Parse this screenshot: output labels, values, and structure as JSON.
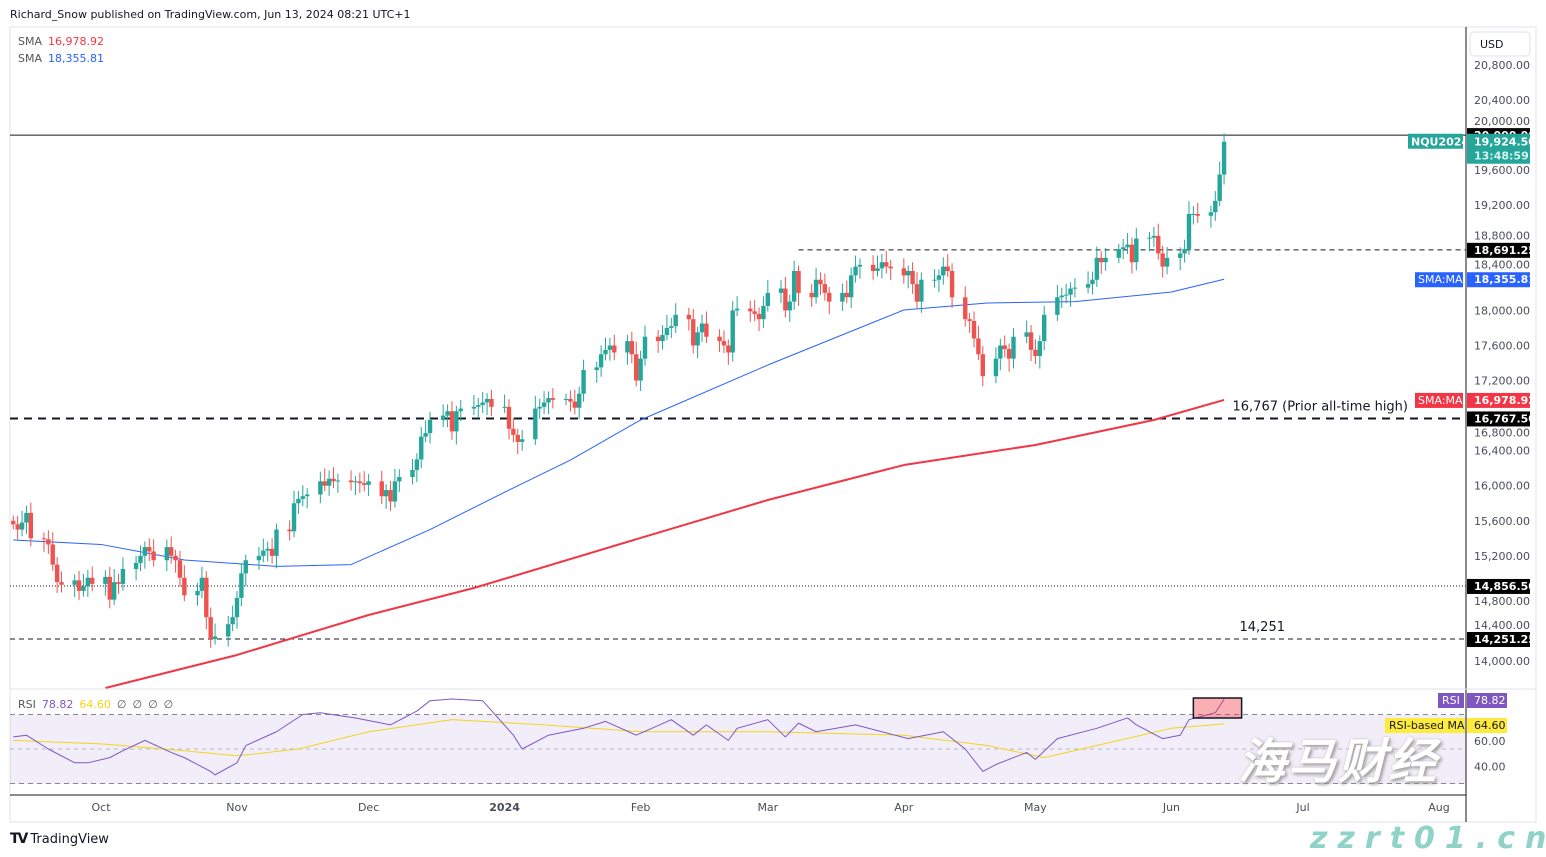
{
  "header": {
    "published": "Richard_Snow published on TradingView.com, Jun 13, 2024 08:21 UTC+1"
  },
  "legend": [
    {
      "label": "SMA",
      "value": "16,978.92",
      "color": "#f23645"
    },
    {
      "label": "SMA",
      "value": "18,355.81",
      "color": "#2962ff"
    }
  ],
  "rsi_legend": {
    "label": "RSI",
    "value": "78.82",
    "ma_value": "64.60",
    "empties": [
      "∅",
      "∅",
      "∅",
      "∅"
    ],
    "value_color": "#7e57c2",
    "ma_color": "#f5d31a"
  },
  "brand": {
    "logo": "TV",
    "name": "TradingView"
  },
  "watermark": {
    "cn": "海马财经",
    "url": "zzrt01.cn"
  },
  "chart_data": [
    {
      "type": "candlestick",
      "symbol": "NQU2024",
      "currency": "USD",
      "start_date": "2023-09-11",
      "first_open": 15600,
      "closes": [
        15560,
        15500,
        15580,
        15690,
        15400,
        15390,
        15330,
        15100,
        14900,
        14870,
        14920,
        14800,
        14850,
        14950,
        14880,
        14960,
        14700,
        14900,
        14880,
        15050,
        15120,
        15200,
        15300,
        15250,
        15150,
        15300,
        15200,
        15150,
        14950,
        14750,
        14800,
        14950,
        14500,
        14250,
        14280,
        14420,
        14500,
        14720,
        15000,
        15150,
        15200,
        15260,
        15280,
        15200,
        15500,
        15480,
        15800,
        15850,
        15880,
        15900,
        16050,
        16000,
        16080,
        16050,
        16060,
        16040,
        16050,
        16030,
        16010,
        16050,
        15880,
        15950,
        15820,
        16050,
        16100,
        16180,
        16300,
        16560,
        16600,
        16750,
        16800,
        16850,
        16620,
        16850,
        16880,
        16900,
        16920,
        16950,
        16990,
        16900,
        16900,
        16650,
        16580,
        16500,
        16530,
        16880,
        16900,
        16950,
        17000,
        16980,
        16990,
        16960,
        16890,
        17050,
        17320,
        17350,
        17500,
        17550,
        17600,
        17520,
        17650,
        17500,
        17200,
        17450,
        17700,
        17650,
        17720,
        17800,
        17820,
        17950,
        17900,
        17600,
        17750,
        17850,
        17700,
        17650,
        17600,
        17520,
        18000,
        18020,
        17990,
        17960,
        17900,
        18050,
        18200,
        18250,
        18000,
        18100,
        18450,
        18200,
        18150,
        18350,
        18300,
        18200,
        18100,
        18200,
        18150,
        18400,
        18500,
        18520,
        18450,
        18480,
        18550,
        18500,
        18480,
        18400,
        18450,
        18300,
        18100,
        18350,
        18350,
        18400,
        18500,
        18450,
        18150,
        17900,
        17880,
        17680,
        17500,
        17250,
        17450,
        17600,
        17560,
        17450,
        17700,
        17750,
        17550,
        17480,
        17650,
        17950,
        18150,
        18170,
        18180,
        18250,
        18260,
        18300,
        18350,
        18600,
        18550,
        18600,
        18700,
        18720,
        18750,
        18550,
        18820,
        18830,
        18850,
        18650,
        18500,
        18600,
        18650,
        18700,
        19100,
        19100,
        19080,
        19120,
        19250,
        19550,
        19924.5
      ],
      "up_color": "#26a69a",
      "down_color": "#ef5350",
      "last_price": "19,924.50",
      "countdown": "13:48:59",
      "ylim": [
        13700,
        21100
      ],
      "y_ticks": [
        "20,800.00",
        "20,400.00",
        "20,000.00",
        "19,600.00",
        "19,200.00",
        "18,800.00",
        "18,400.00",
        "18,000.00",
        "17,600.00",
        "17,200.00",
        "16,800.00",
        "16,400.00",
        "16,000.00",
        "15,600.00",
        "15,200.00",
        "14,800.00",
        "14,400.00",
        "14,000.00"
      ],
      "x_ticks": [
        "Oct",
        "Nov",
        "Dec",
        "2024",
        "Feb",
        "Mar",
        "Apr",
        "May",
        "Jun",
        "Jul",
        "Aug"
      ],
      "sma_200": {
        "label": "SMA:MA",
        "value": "16,978.92",
        "color": "#f23645",
        "points": [
          [
            "2023-10-02",
            13692
          ],
          [
            "2023-11-01",
            14069
          ],
          [
            "2023-12-01",
            14525
          ],
          [
            "2023-12-25",
            14833
          ],
          [
            "2024-02-01",
            15404
          ],
          [
            "2024-03-01",
            15837
          ],
          [
            "2024-04-01",
            16236
          ],
          [
            "2024-05-01",
            16465
          ],
          [
            "2024-05-28",
            16750
          ],
          [
            "2024-06-13",
            16978.92
          ]
        ]
      },
      "sma_50": {
        "label": "SMA:MA",
        "value": "18,355.81",
        "color": "#2962ff",
        "points": [
          [
            "2023-09-11",
            15381
          ],
          [
            "2023-10-01",
            15330
          ],
          [
            "2023-10-20",
            15153
          ],
          [
            "2023-11-10",
            15080
          ],
          [
            "2023-11-27",
            15100
          ],
          [
            "2023-12-15",
            15500
          ],
          [
            "2024-01-02",
            15951
          ],
          [
            "2024-01-16",
            16293
          ],
          [
            "2024-02-01",
            16750
          ],
          [
            "2024-03-01",
            17377
          ],
          [
            "2024-04-01",
            18005
          ],
          [
            "2024-04-20",
            18085
          ],
          [
            "2024-05-10",
            18100
          ],
          [
            "2024-06-01",
            18210
          ],
          [
            "2024-06-13",
            18355.81
          ]
        ]
      },
      "levels": [
        {
          "value": 20000,
          "label": "20,000.00",
          "style": "solid",
          "from": "2023-09-05"
        },
        {
          "value": 18691.25,
          "label": "18,691.25",
          "style": "dashed",
          "from": "2024-03-08"
        },
        {
          "value": 16767.5,
          "label": "16,767.50",
          "style": "bold-dashed",
          "from": "2023-09-05",
          "annotation": "16,767 (Prior all-time high)"
        },
        {
          "value": 14856.5,
          "label": "14,856.50",
          "style": "dotted",
          "from": "2023-09-05"
        },
        {
          "value": 14251.25,
          "label": "14,251.25",
          "style": "dashed",
          "from": "2023-09-05",
          "annotation": "14,251"
        }
      ]
    },
    {
      "type": "line",
      "name": "RSI",
      "ylim": [
        16,
        84
      ],
      "bands": [
        30,
        50,
        70
      ],
      "y_ticks": [
        "60.00",
        "40.00"
      ],
      "rsi_badge": {
        "label": "RSI",
        "value": "78.82",
        "color": "#7e57c2"
      },
      "ma_badge": {
        "label": "RSI-based MA",
        "value": "64.60",
        "color": "#ffeb3b"
      },
      "rsi": [
        [
          "2023-09-11",
          57
        ],
        [
          "2023-09-14",
          58
        ],
        [
          "2023-09-19",
          50
        ],
        [
          "2023-09-25",
          42
        ],
        [
          "2023-09-28",
          42
        ],
        [
          "2023-10-03",
          45
        ],
        [
          "2023-10-06",
          49
        ],
        [
          "2023-10-11",
          55
        ],
        [
          "2023-10-17",
          48
        ],
        [
          "2023-10-20",
          45
        ],
        [
          "2023-10-26",
          37
        ],
        [
          "2023-10-27",
          35
        ],
        [
          "2023-11-01",
          42
        ],
        [
          "2023-11-03",
          52
        ],
        [
          "2023-11-10",
          60
        ],
        [
          "2023-11-16",
          70
        ],
        [
          "2023-11-20",
          71
        ],
        [
          "2023-11-28",
          68
        ],
        [
          "2023-12-06",
          64
        ],
        [
          "2023-12-12",
          72
        ],
        [
          "2023-12-15",
          78
        ],
        [
          "2023-12-20",
          79
        ],
        [
          "2023-12-27",
          78
        ],
        [
          "2024-01-03",
          58
        ],
        [
          "2024-01-05",
          50
        ],
        [
          "2024-01-11",
          58
        ],
        [
          "2024-01-19",
          62
        ],
        [
          "2024-01-24",
          66
        ],
        [
          "2024-01-31",
          58
        ],
        [
          "2024-02-08",
          67
        ],
        [
          "2024-02-13",
          58
        ],
        [
          "2024-02-16",
          64
        ],
        [
          "2024-02-21",
          55
        ],
        [
          "2024-02-23",
          62
        ],
        [
          "2024-03-01",
          67
        ],
        [
          "2024-03-05",
          57
        ],
        [
          "2024-03-08",
          65
        ],
        [
          "2024-03-12",
          60
        ],
        [
          "2024-03-21",
          64
        ],
        [
          "2024-04-02",
          56
        ],
        [
          "2024-04-10",
          60
        ],
        [
          "2024-04-15",
          50
        ],
        [
          "2024-04-19",
          37
        ],
        [
          "2024-04-22",
          41
        ],
        [
          "2024-04-29",
          48
        ],
        [
          "2024-05-01",
          44
        ],
        [
          "2024-05-06",
          56
        ],
        [
          "2024-05-15",
          62
        ],
        [
          "2024-05-22",
          68
        ],
        [
          "2024-05-24",
          64
        ],
        [
          "2024-05-30",
          56
        ],
        [
          "2024-06-03",
          58
        ],
        [
          "2024-06-05",
          67
        ],
        [
          "2024-06-11",
          71
        ],
        [
          "2024-06-13",
          78.82
        ]
      ],
      "rsi_ma": [
        [
          "2023-09-11",
          55
        ],
        [
          "2023-10-01",
          53
        ],
        [
          "2023-10-20",
          49
        ],
        [
          "2023-11-01",
          46
        ],
        [
          "2023-11-15",
          50
        ],
        [
          "2023-12-01",
          60
        ],
        [
          "2023-12-20",
          67
        ],
        [
          "2024-01-10",
          64
        ],
        [
          "2024-02-01",
          60
        ],
        [
          "2024-03-01",
          60
        ],
        [
          "2024-04-01",
          58
        ],
        [
          "2024-04-20",
          52
        ],
        [
          "2024-05-03",
          45
        ],
        [
          "2024-05-20",
          55
        ],
        [
          "2024-06-01",
          62
        ],
        [
          "2024-06-13",
          64.6
        ]
      ],
      "highlight": {
        "from": "2024-06-06",
        "to": "2024-06-17",
        "color": "#f23645"
      }
    }
  ]
}
